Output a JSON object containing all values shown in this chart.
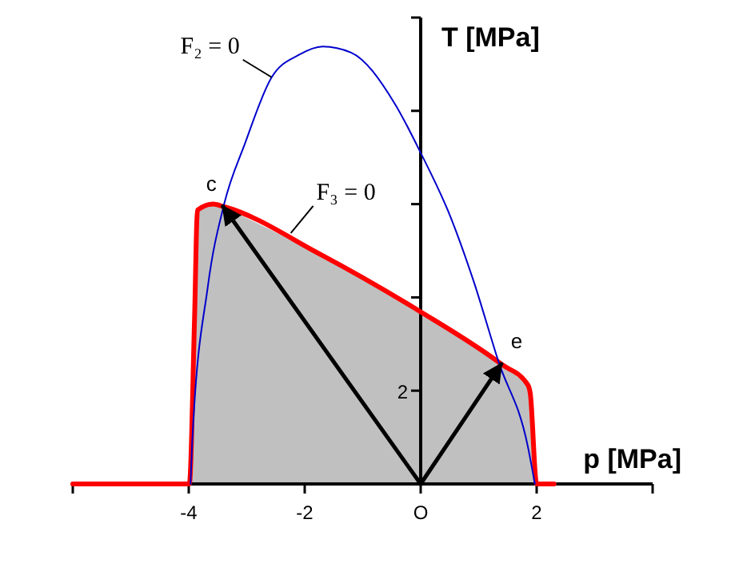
{
  "chart_data": {
    "type": "line",
    "xlabel": "p [MPa]",
    "ylabel": "T [MPa]",
    "xlim": [
      -6,
      4
    ],
    "ylim": [
      0,
      10
    ],
    "xticks": [
      {
        "value": -6,
        "label": null
      },
      -4,
      -2,
      {
        "value": 0,
        "label": "O"
      },
      2,
      {
        "value": 4,
        "label": null
      }
    ],
    "yticks": [
      2,
      {
        "value": 4,
        "label": null
      },
      {
        "value": 6,
        "label": null
      },
      {
        "value": 8,
        "label": null
      },
      {
        "value": 10,
        "label": null
      }
    ],
    "marker": "none",
    "line_style": "solid",
    "series": [
      {
        "type": "area",
        "color": "#c0c0c0",
        "x": [
          -3.99,
          -3.9,
          -3.85,
          -3.58,
          -3.41,
          -1.74,
          -0.04,
          1.39,
          1.85,
          1.89,
          2.0
        ],
        "values": [
          0,
          3.55,
          5.87,
          6.0,
          5.95,
          4.93,
          3.72,
          2.57,
          2.12,
          1.94,
          0
        ]
      },
      {
        "type": "line",
        "color": "#ff0000",
        "x": [
          -6,
          -4,
          -3.99,
          -3.9,
          -3.85,
          -3.58,
          -3.41,
          -1.74,
          -0.04,
          1.39,
          1.85,
          1.89,
          2.0,
          2.3
        ],
        "values": [
          0,
          0,
          0,
          3.55,
          5.87,
          6.0,
          5.95,
          4.93,
          3.72,
          2.57,
          2.12,
          1.94,
          0,
          0
        ]
      },
      {
        "type": "line",
        "color": "#0000cc",
        "x": [
          -3.97,
          -3.94,
          -3.67,
          -3.39,
          -3.03,
          -2.57,
          -2.1,
          -1.69,
          -1.2,
          -0.45,
          0,
          0.51,
          0.91,
          1.34,
          1.85,
          1.97
        ],
        "values": [
          0,
          0.9,
          4.24,
          6.0,
          7.3,
          8.72,
          9.2,
          9.38,
          9.25,
          8.16,
          7.1,
          5.74,
          4.36,
          2.63,
          0.79,
          0
        ]
      },
      {
        "type": "line",
        "color": "#000000",
        "x": [
          0,
          -3.41
        ],
        "values": [
          0,
          5.95
        ]
      },
      {
        "type": "line",
        "color": "#000000",
        "x": [
          0,
          1.39
        ],
        "values": [
          0,
          2.57
        ]
      }
    ],
    "annotations": [
      {
        "text": "F₂ = 0",
        "x": -2.57,
        "y": 8.72
      },
      {
        "text": "F₃ = 0",
        "x": -2.24,
        "y": 5.38
      },
      {
        "text": "c",
        "x": -3.41,
        "y": 5.95
      },
      {
        "text": "e",
        "x": 1.39,
        "y": 2.57
      }
    ]
  }
}
